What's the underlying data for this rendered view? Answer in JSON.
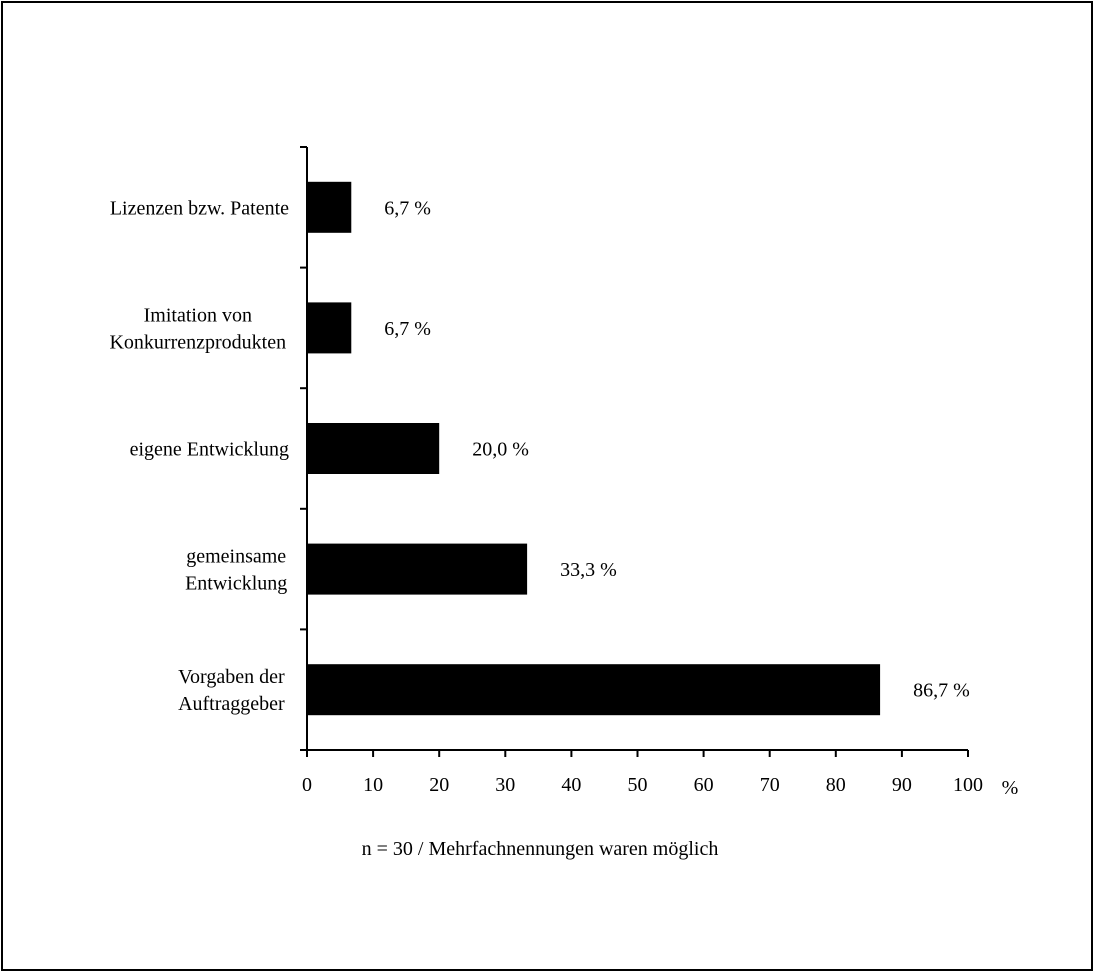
{
  "chart_data": {
    "type": "bar",
    "orientation": "horizontal",
    "categories": [
      [
        "Lizenzen bzw. Patente"
      ],
      [
        "Imitation von",
        "Konkurrenzprodukten"
      ],
      [
        "eigene Entwicklung"
      ],
      [
        "gemeinsame",
        "Entwicklung"
      ],
      [
        "Vorgaben der",
        "Auftraggeber"
      ]
    ],
    "values": [
      6.7,
      6.7,
      20.0,
      33.3,
      86.7
    ],
    "value_labels": [
      "6,7 %",
      "6,7 %",
      "20,0 %",
      "33,3 %",
      "86,7 %"
    ],
    "x_ticks": [
      "0",
      "10",
      "20",
      "30",
      "40",
      "50",
      "60",
      "70",
      "80",
      "90",
      "100"
    ],
    "xlim": [
      0,
      100
    ],
    "x_unit": "%",
    "note": "n = 30 / Mehrfachnennungen waren möglich",
    "grid": false,
    "bar_color": "#000000"
  }
}
